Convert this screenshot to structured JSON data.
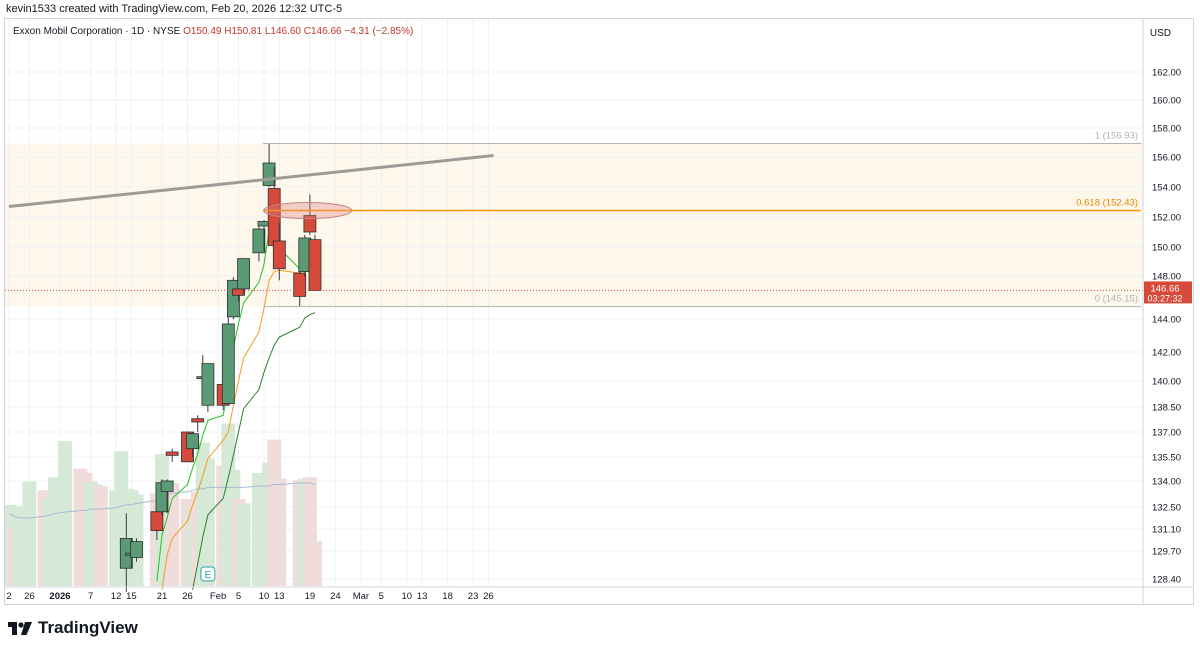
{
  "header": {
    "created_by": "kevin1533 created with TradingView.com, Feb 20, 2026 12:32 UTC-5"
  },
  "legend": {
    "symbol": "Exxon Mobil Corporation · 1D · NYSE",
    "open": "O150.49",
    "high": "H150.81",
    "low": "L146.60",
    "close": "C146.66",
    "change": "−4.31 (−2.85%)"
  },
  "price_axis": {
    "currency": "USD"
  },
  "last_price": {
    "value": "146.66",
    "countdown": "03:27:32"
  },
  "fib": {
    "level_1": "1 (156.93)",
    "level_618": "0.618 (152.43)",
    "level_0": "0 (145.15)"
  },
  "earnings_marker": "E",
  "brand": {
    "name": "TradingView"
  },
  "colors": {
    "up": "#5a9b76",
    "down": "#d54a3a",
    "ema_fast": "#22c322",
    "ema_mid": "#f29d1f",
    "ema_slow": "#2e7d32",
    "vol_ma": "#a7bcd6",
    "fib_618": "#ff9800",
    "trendline": "#9e9a95"
  },
  "chart_data": {
    "type": "candlestick",
    "title": "Exxon Mobil Corporation · 1D · NYSE",
    "y_ticks": [
      128.4,
      129.7,
      131.1,
      132.5,
      134.0,
      135.5,
      137.0,
      138.5,
      140.0,
      142.0,
      144.0,
      148.0,
      150.0,
      152.0,
      154.0,
      156.0,
      158.0,
      160.0,
      162.0
    ],
    "y_tick_labels": [
      "128.40",
      "129.70",
      "131.10",
      "132.50",
      "134.00",
      "135.50",
      "137.00",
      "138.50",
      "140.00",
      "142.00",
      "144.00",
      "148.00",
      "150.00",
      "152.00",
      "154.00",
      "156.00",
      "158.00",
      "160.00",
      "162.00"
    ],
    "x_tick_labels": [
      {
        "label": "2",
        "date": "2025-12-22"
      },
      {
        "label": "26",
        "date": "2025-12-26"
      },
      {
        "label": "2026",
        "date": "2026-01-01"
      },
      {
        "label": "7",
        "date": "2026-01-07"
      },
      {
        "label": "12",
        "date": "2026-01-12"
      },
      {
        "label": "15",
        "date": "2026-01-15"
      },
      {
        "label": "21",
        "date": "2026-01-21"
      },
      {
        "label": "26",
        "date": "2026-01-26"
      },
      {
        "label": "Feb",
        "date": "2026-02-01"
      },
      {
        "label": "5",
        "date": "2026-02-05"
      },
      {
        "label": "10",
        "date": "2026-02-10"
      },
      {
        "label": "13",
        "date": "2026-02-13"
      },
      {
        "label": "19",
        "date": "2026-02-19"
      },
      {
        "label": "24",
        "date": "2026-02-24"
      },
      {
        "label": "Mar",
        "date": "2026-03-01"
      },
      {
        "label": "5",
        "date": "2026-03-05"
      },
      {
        "label": "10",
        "date": "2026-03-10"
      },
      {
        "label": "13",
        "date": "2026-03-13"
      },
      {
        "label": "18",
        "date": "2026-03-18"
      },
      {
        "label": "23",
        "date": "2026-03-23"
      },
      {
        "label": "26",
        "date": "2026-03-26"
      }
    ],
    "candles": [
      {
        "date": "2026-01-14",
        "open": 128.9,
        "high": 132.1,
        "low": 127.8,
        "close": 130.5
      },
      {
        "date": "2026-01-15",
        "open": 129.6,
        "high": 130.5,
        "low": 128.9,
        "close": 129.6
      },
      {
        "date": "2026-01-16",
        "open": 129.4,
        "high": 130.5,
        "low": 129.2,
        "close": 130.3
      },
      {
        "date": "2026-01-20",
        "open": 132.2,
        "high": 132.3,
        "low": 130.4,
        "close": 131.0
      },
      {
        "date": "2026-01-21",
        "open": 132.2,
        "high": 134.1,
        "low": 132.0,
        "close": 133.9
      },
      {
        "date": "2026-01-22",
        "open": 133.4,
        "high": 134.1,
        "low": 132.1,
        "close": 134.0
      },
      {
        "date": "2026-01-23",
        "open": 135.8,
        "high": 136.0,
        "low": 135.2,
        "close": 135.6
      },
      {
        "date": "2026-01-26",
        "open": 137.0,
        "high": 137.0,
        "low": 135.2,
        "close": 135.2
      },
      {
        "date": "2026-01-27",
        "open": 136.0,
        "high": 137.0,
        "low": 135.5,
        "close": 136.9
      },
      {
        "date": "2026-01-28",
        "open": 137.8,
        "high": 138.0,
        "low": 137.0,
        "close": 137.6
      },
      {
        "date": "2026-01-29",
        "open": 140.2,
        "high": 141.8,
        "low": 138.6,
        "close": 140.3
      },
      {
        "date": "2026-01-30",
        "open": 138.6,
        "high": 141.2,
        "low": 138.2,
        "close": 141.2
      },
      {
        "date": "2026-02-02",
        "open": 139.8,
        "high": 140.4,
        "low": 138.3,
        "close": 138.6
      },
      {
        "date": "2026-02-03",
        "open": 138.7,
        "high": 144.8,
        "low": 138.6,
        "close": 143.7
      },
      {
        "date": "2026-02-04",
        "open": 144.2,
        "high": 147.9,
        "low": 144.0,
        "close": 147.6
      },
      {
        "date": "2026-02-05",
        "open": 146.8,
        "high": 146.9,
        "low": 145.6,
        "close": 146.2
      },
      {
        "date": "2026-02-06",
        "open": 146.8,
        "high": 149.2,
        "low": 146.3,
        "close": 149.2
      },
      {
        "date": "2026-02-09",
        "open": 149.6,
        "high": 151.7,
        "low": 149.0,
        "close": 151.2
      },
      {
        "date": "2026-02-10",
        "open": 151.4,
        "high": 151.8,
        "low": 149.7,
        "close": 151.7
      },
      {
        "date": "2026-02-11",
        "open": 154.1,
        "high": 156.9,
        "low": 154.0,
        "close": 155.6
      },
      {
        "date": "2026-02-12",
        "open": 153.9,
        "high": 155.3,
        "low": 149.8,
        "close": 150.1
      },
      {
        "date": "2026-02-13",
        "open": 150.4,
        "high": 151.6,
        "low": 147.6,
        "close": 148.5
      },
      {
        "date": "2026-02-17",
        "open": 148.2,
        "high": 149.1,
        "low": 145.2,
        "close": 146.1
      },
      {
        "date": "2026-02-18",
        "open": 148.3,
        "high": 150.8,
        "low": 147.9,
        "close": 150.6
      },
      {
        "date": "2026-02-19",
        "open": 152.1,
        "high": 153.5,
        "low": 150.8,
        "close": 151.0
      },
      {
        "date": "2026-02-20",
        "open": 150.49,
        "high": 150.81,
        "low": 146.6,
        "close": 146.66
      }
    ],
    "volume": [
      {
        "date": "2025-12-22",
        "value": 0.56,
        "dir": "up"
      },
      {
        "date": "2025-12-23",
        "value": 0.4,
        "dir": "down"
      },
      {
        "date": "2025-12-24",
        "value": 0.55,
        "dir": "up"
      },
      {
        "date": "2025-12-26",
        "value": 0.72,
        "dir": "up"
      },
      {
        "date": "2025-12-29",
        "value": 0.66,
        "dir": "down"
      },
      {
        "date": "2025-12-30",
        "value": 0.61,
        "dir": "up"
      },
      {
        "date": "2025-12-31",
        "value": 0.75,
        "dir": "up"
      },
      {
        "date": "2026-01-02",
        "value": 1.0,
        "dir": "up"
      },
      {
        "date": "2026-01-05",
        "value": 0.81,
        "dir": "down"
      },
      {
        "date": "2026-01-06",
        "value": 0.78,
        "dir": "down"
      },
      {
        "date": "2026-01-07",
        "value": 0.72,
        "dir": "up"
      },
      {
        "date": "2026-01-08",
        "value": 0.7,
        "dir": "up"
      },
      {
        "date": "2026-01-09",
        "value": 0.69,
        "dir": "down"
      },
      {
        "date": "2026-01-12",
        "value": 0.66,
        "dir": "up"
      },
      {
        "date": "2026-01-13",
        "value": 0.93,
        "dir": "up"
      },
      {
        "date": "2026-01-14",
        "value": 0.67,
        "dir": "up"
      },
      {
        "date": "2026-01-15",
        "value": 0.66,
        "dir": "up"
      },
      {
        "date": "2026-01-16",
        "value": 0.63,
        "dir": "up"
      },
      {
        "date": "2026-01-20",
        "value": 0.64,
        "dir": "down"
      },
      {
        "date": "2026-01-21",
        "value": 0.91,
        "dir": "up"
      },
      {
        "date": "2026-01-22",
        "value": 0.73,
        "dir": "up"
      },
      {
        "date": "2026-01-23",
        "value": 0.71,
        "dir": "down"
      },
      {
        "date": "2026-01-26",
        "value": 0.6,
        "dir": "down"
      },
      {
        "date": "2026-01-27",
        "value": 0.53,
        "dir": "up"
      },
      {
        "date": "2026-01-28",
        "value": 0.65,
        "dir": "down"
      },
      {
        "date": "2026-01-29",
        "value": 0.99,
        "dir": "up"
      },
      {
        "date": "2026-01-30",
        "value": 0.88,
        "dir": "up"
      },
      {
        "date": "2026-02-02",
        "value": 0.83,
        "dir": "down"
      },
      {
        "date": "2026-02-03",
        "value": 1.12,
        "dir": "up"
      },
      {
        "date": "2026-02-04",
        "value": 0.8,
        "dir": "up"
      },
      {
        "date": "2026-02-05",
        "value": 0.6,
        "dir": "down"
      },
      {
        "date": "2026-02-06",
        "value": 0.57,
        "dir": "up"
      },
      {
        "date": "2026-02-09",
        "value": 0.78,
        "dir": "up"
      },
      {
        "date": "2026-02-10",
        "value": 0.57,
        "dir": "up"
      },
      {
        "date": "2026-02-11",
        "value": 0.85,
        "dir": "up"
      },
      {
        "date": "2026-02-12",
        "value": 1.01,
        "dir": "down"
      },
      {
        "date": "2026-02-13",
        "value": 0.74,
        "dir": "down"
      },
      {
        "date": "2026-02-17",
        "value": 0.73,
        "dir": "down"
      },
      {
        "date": "2026-02-18",
        "value": 0.74,
        "dir": "up"
      },
      {
        "date": "2026-02-19",
        "value": 0.75,
        "dir": "down"
      },
      {
        "date": "2026-02-20",
        "value": 0.31,
        "dir": "down"
      }
    ],
    "ema_fast": [
      {
        "date": "2026-01-20",
        "value": 128.3
      },
      {
        "date": "2026-01-21",
        "value": 130.7
      },
      {
        "date": "2026-01-22",
        "value": 131.8
      },
      {
        "date": "2026-01-23",
        "value": 133.0
      },
      {
        "date": "2026-01-26",
        "value": 133.8
      },
      {
        "date": "2026-01-27",
        "value": 134.8
      },
      {
        "date": "2026-01-28",
        "value": 135.7
      },
      {
        "date": "2026-01-29",
        "value": 136.8
      },
      {
        "date": "2026-01-30",
        "value": 137.7
      },
      {
        "date": "2026-02-02",
        "value": 138.0
      },
      {
        "date": "2026-02-03",
        "value": 139.6
      },
      {
        "date": "2026-02-04",
        "value": 142.3
      },
      {
        "date": "2026-02-05",
        "value": 143.7
      },
      {
        "date": "2026-02-06",
        "value": 145.5
      },
      {
        "date": "2026-02-09",
        "value": 147.4
      },
      {
        "date": "2026-02-10",
        "value": 148.8
      },
      {
        "date": "2026-02-11",
        "value": 151.1
      },
      {
        "date": "2026-02-12",
        "value": 150.8
      },
      {
        "date": "2026-02-13",
        "value": 149.9
      },
      {
        "date": "2026-02-17",
        "value": 148.5
      },
      {
        "date": "2026-02-18",
        "value": 149.2
      },
      {
        "date": "2026-02-19",
        "value": 149.9
      },
      {
        "date": "2026-02-20",
        "value": 148.8
      }
    ],
    "ema_mid": [
      {
        "date": "2026-01-21",
        "value": 127.9
      },
      {
        "date": "2026-01-22",
        "value": 129.5
      },
      {
        "date": "2026-01-23",
        "value": 130.5
      },
      {
        "date": "2026-01-26",
        "value": 131.6
      },
      {
        "date": "2026-01-27",
        "value": 132.6
      },
      {
        "date": "2026-01-28",
        "value": 133.4
      },
      {
        "date": "2026-01-29",
        "value": 134.3
      },
      {
        "date": "2026-01-30",
        "value": 135.4
      },
      {
        "date": "2026-02-02",
        "value": 136.5
      },
      {
        "date": "2026-02-03",
        "value": 137.0
      },
      {
        "date": "2026-02-04",
        "value": 138.6
      },
      {
        "date": "2026-02-05",
        "value": 140.0
      },
      {
        "date": "2026-02-06",
        "value": 141.6
      },
      {
        "date": "2026-02-09",
        "value": 143.2
      },
      {
        "date": "2026-02-10",
        "value": 145.0
      },
      {
        "date": "2026-02-11",
        "value": 147.6
      },
      {
        "date": "2026-02-12",
        "value": 148.3
      },
      {
        "date": "2026-02-13",
        "value": 148.4
      },
      {
        "date": "2026-02-17",
        "value": 148.2
      },
      {
        "date": "2026-02-18",
        "value": 148.6
      },
      {
        "date": "2026-02-19",
        "value": 149.0
      },
      {
        "date": "2026-02-20",
        "value": 148.6
      }
    ],
    "ema_slow": [
      {
        "date": "2026-01-27",
        "value": 127.9
      },
      {
        "date": "2026-01-28",
        "value": 129.1
      },
      {
        "date": "2026-01-29",
        "value": 130.6
      },
      {
        "date": "2026-01-30",
        "value": 132.0
      },
      {
        "date": "2026-02-02",
        "value": 133.0
      },
      {
        "date": "2026-02-03",
        "value": 134.2
      },
      {
        "date": "2026-02-04",
        "value": 135.6
      },
      {
        "date": "2026-02-05",
        "value": 137.0
      },
      {
        "date": "2026-02-06",
        "value": 138.4
      },
      {
        "date": "2026-02-09",
        "value": 139.5
      },
      {
        "date": "2026-02-10",
        "value": 140.6
      },
      {
        "date": "2026-02-11",
        "value": 141.6
      },
      {
        "date": "2026-02-12",
        "value": 142.4
      },
      {
        "date": "2026-02-13",
        "value": 142.9
      },
      {
        "date": "2026-02-17",
        "value": 143.5
      },
      {
        "date": "2026-02-18",
        "value": 144.1
      },
      {
        "date": "2026-02-19",
        "value": 144.4
      },
      {
        "date": "2026-02-20",
        "value": 144.6
      }
    ],
    "vol_ma": [
      0.5,
      0.48,
      0.47,
      0.47,
      0.48,
      0.49,
      0.5,
      0.51,
      0.52,
      0.52,
      0.53,
      0.53,
      0.53,
      0.54,
      0.55,
      0.56,
      0.56,
      0.57,
      0.59,
      0.61,
      0.63,
      0.64,
      0.65,
      0.66,
      0.67,
      0.67,
      0.68,
      0.68,
      0.68,
      0.68,
      0.68,
      0.68,
      0.69,
      0.69,
      0.69,
      0.7,
      0.7,
      0.71,
      0.71,
      0.71,
      0.7
    ],
    "fib_levels": [
      {
        "ratio": 1,
        "price": 156.93
      },
      {
        "ratio": 0.618,
        "price": 152.43
      },
      {
        "ratio": 0,
        "price": 145.15
      }
    ],
    "trendline": [
      {
        "date": "2025-12-22",
        "price": 152.7
      },
      {
        "date": "2026-03-27",
        "price": 156.1
      }
    ],
    "grid": true,
    "legend_position": "top-left"
  }
}
